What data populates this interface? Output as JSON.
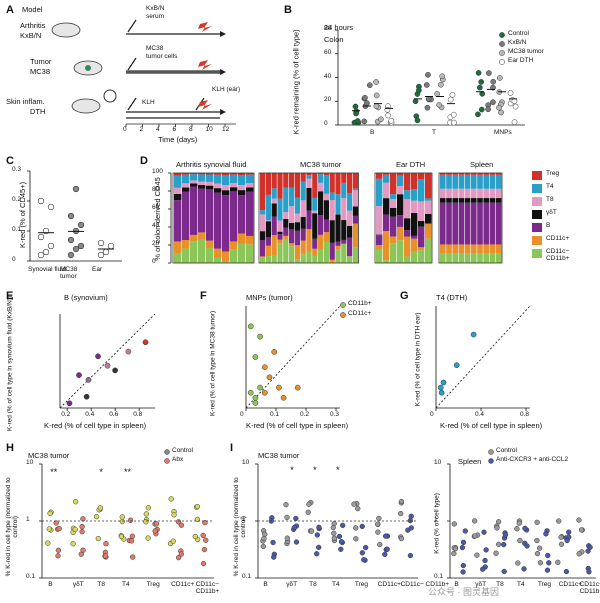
{
  "panels": {
    "A": {
      "label": "A",
      "title": "Model",
      "rows": [
        {
          "name1": "Arthritis",
          "name2": "KxB/N",
          "treatment": "KxB/N",
          "treatment2": "serum"
        },
        {
          "name1": "Tumor",
          "name2": "MC38",
          "treatment": "MC38",
          "treatment2": "tumor cells"
        },
        {
          "name1": "Skin inflam.",
          "name2": "DTH",
          "treatment": "KLH",
          "treatment2": "KLH (ear)"
        }
      ],
      "xticks": [
        "0",
        "2",
        "4",
        "6",
        "8",
        "10",
        "12"
      ],
      "xlabel": "Time (days)"
    },
    "B": {
      "label": "B",
      "subtitle1": "24 hours",
      "subtitle2": "Colon",
      "ylabel": "K-red remaining (% of cell type)",
      "yticks": [
        "0",
        "20",
        "40",
        "60",
        "80"
      ],
      "groups": [
        "B",
        "T",
        "MNPs"
      ],
      "legend": [
        "Control",
        "KxB/N",
        "MC38 tumor",
        "Ear DTH"
      ],
      "colors": {
        "control": "#1f6b3a",
        "kxbn": "#7a7a7a",
        "mc38": "#b8b8b8",
        "dth": "#ffffff"
      }
    },
    "C": {
      "label": "C",
      "ylabel": "K-red (% of CD45+)",
      "yticks": [
        "0",
        "0.1",
        "0.2",
        "0.3"
      ],
      "groups": [
        "Synovial fluid",
        "MC38 tumor",
        "Ear"
      ]
    },
    "D": {
      "label": "D",
      "ylabel": "% of colon-derived CD45",
      "yticks": [
        "0",
        "20",
        "40",
        "60",
        "80",
        "100"
      ],
      "titles": [
        "Arthritis synovial fluid",
        "MC38 tumor",
        "Ear DTH",
        "Spleen"
      ],
      "legend": [
        {
          "name": "Treg",
          "color": "#d2312a"
        },
        {
          "name": "T4",
          "color": "#2a9fc9"
        },
        {
          "name": "T8",
          "color": "#e39ac2"
        },
        {
          "name": "γδT",
          "color": "#111111"
        },
        {
          "name": "B",
          "color": "#7b2a8c"
        },
        {
          "name": "CD11c+",
          "color": "#e8902a"
        },
        {
          "name": "CD11c− CD11b+",
          "color": "#8cc65a"
        }
      ]
    },
    "E": {
      "label": "E",
      "title": "B (synovium)",
      "ylabel": "K-red (% of cell type in synovium fluid (KxB/N))",
      "xlabel": "K-red (% of cell type in spleen)",
      "xticks": [
        "0.2",
        "0.4",
        "0.6",
        "0.8"
      ]
    },
    "F": {
      "label": "F",
      "title": "MNPs (tumor)",
      "ylabel": "K-red (% of cell type in MC38 tumor)",
      "xlabel": "K-red (% of cell type in spleen)",
      "xticks": [
        "0",
        "0.1",
        "0.2",
        "0.3"
      ],
      "legend": [
        "CD11b+",
        "CD11c+"
      ]
    },
    "G": {
      "label": "G",
      "title": "T4 (DTH)",
      "ylabel": "K-red (% of cell type in DTH ear)",
      "xlabel": "K-red (% of cell type in spleen)",
      "xticks": [
        "0",
        "0.4",
        "0.8"
      ]
    },
    "H": {
      "label": "H",
      "title": "MC38 tumor",
      "ylabel": "% K-red in cell type (normalized to control)",
      "yticks": [
        "0.1",
        "1",
        "10"
      ],
      "legend": [
        "Control",
        "Abx"
      ],
      "groups": [
        "B",
        "γδT",
        "T8",
        "T4",
        "Treg",
        "CD11c+",
        "CD11c− CD11b+"
      ],
      "stars": [
        "**",
        "*",
        "**"
      ]
    },
    "I": {
      "label": "I",
      "title1": "MC38 tumor",
      "title2": "Spleen",
      "ylabel1": "% K-red in cell type (normalized to control)",
      "ylabel2": "K-red (% of cell type)",
      "yticks1": [
        "0.1",
        "1",
        "10"
      ],
      "yticks2": [
        "0.1",
        "1",
        "10"
      ],
      "legend": [
        "Control",
        "Anti-CXCR3 + anti-CCL2"
      ],
      "groups": [
        "B",
        "γδT",
        "T8",
        "T4",
        "Treg",
        "CD11c+",
        "CD11c− CD11b+"
      ],
      "stars": [
        "*",
        "*",
        "*"
      ]
    }
  },
  "watermark": "公众号 · 图灵基因"
}
